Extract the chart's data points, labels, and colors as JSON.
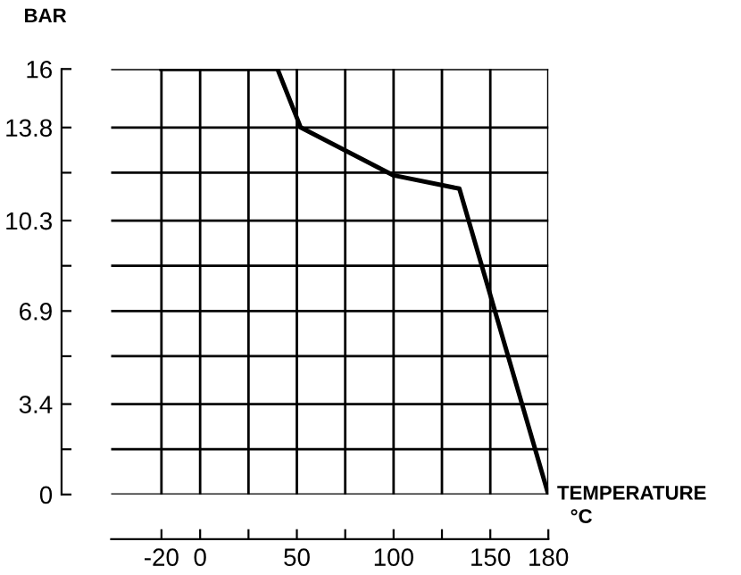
{
  "chart_data": {
    "type": "line",
    "ylabel": "BAR",
    "xlabel": "TEMPERATURE",
    "annotations": [
      "°C"
    ],
    "x": [
      -20,
      40,
      52,
      100,
      134,
      180
    ],
    "series": [
      {
        "color": "#000000",
        "values": [
          16,
          16,
          13.8,
          12,
          11.5,
          0
        ]
      }
    ],
    "xlim": [
      -46,
      180
    ],
    "ylim": [
      0,
      16
    ],
    "xticks": [
      -20,
      0,
      {
        "value": 25,
        "label": null
      },
      50,
      {
        "value": 75,
        "label": null
      },
      100,
      {
        "value": 125,
        "label": null
      },
      150,
      180
    ],
    "yticks": [
      0,
      {
        "value": 1.7,
        "label": null
      },
      3.4,
      {
        "value": 5.2,
        "label": null
      },
      6.9,
      {
        "value": 8.6,
        "label": null
      },
      10.3,
      {
        "value": 12.1,
        "label": null
      },
      13.8,
      16
    ],
    "grid": true,
    "legend": false,
    "marker": "none",
    "line_style": "solid"
  }
}
